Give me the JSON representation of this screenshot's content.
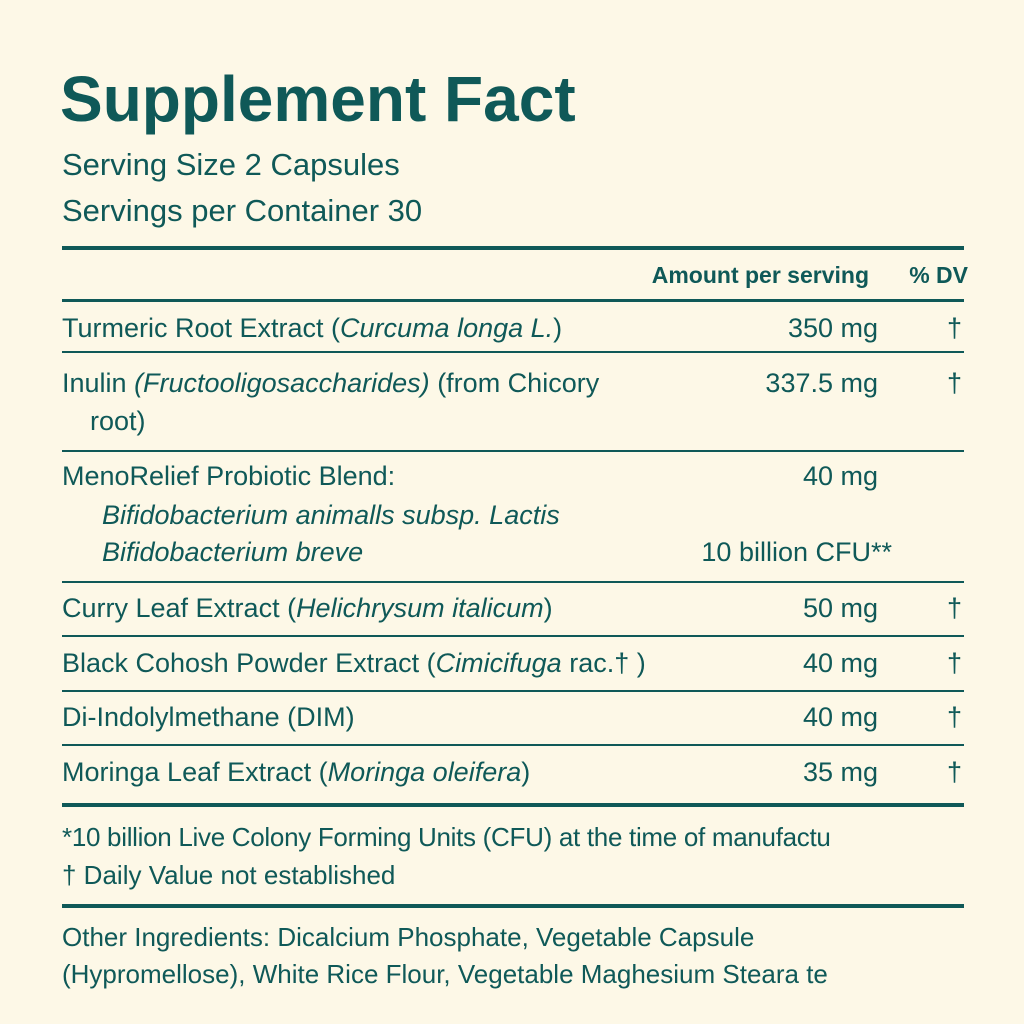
{
  "title": "Supplement Fact",
  "serving_size": "Serving Size  2 Capsules",
  "servings_per_container": "Servings per Container 30",
  "header": {
    "amount": "Amount per serving",
    "dv": "% DV"
  },
  "rows": [
    {
      "name": "Turmeric Root Extract (",
      "latin": "Curcuma longa L.",
      "tail": ")",
      "amount": "350 mg",
      "dv": "†"
    },
    {
      "name": "Inulin ",
      "latin": "(Fructooligosaccharides)",
      "tail": " (from Chicory",
      "cont": "root)",
      "amount": "337.5 mg",
      "dv": "†"
    },
    {
      "name": "MenoRelief Probiotic Blend:",
      "amount": "40 mg",
      "strains": [
        "Bifidobacterium animalls subsp. Lactis",
        "Bifidobacterium breve"
      ],
      "cfu": "10 billion CFU**"
    },
    {
      "name": "Curry Leaf Extract (",
      "latin": "Helichrysum italicum",
      "tail": ")",
      "amount": "50 mg",
      "dv": "†"
    },
    {
      "name": "Black Cohosh Powder Extract (",
      "latin": "Cimicifuga",
      "tail": " rac.† )",
      "amount": "40 mg",
      "dv": "†"
    },
    {
      "name": "Di-Indolylmethane (DIM)",
      "amount": "40 mg",
      "dv": "†"
    },
    {
      "name": "Moringa Leaf Extract (",
      "latin": "Moringa oleifera",
      "tail": ")",
      "amount": "35 mg",
      "dv": "†"
    }
  ],
  "footnotes": [
    "*10 billion Live Colony Forming Units (CFU) at the time of manufactu",
    "† Daily Value not established"
  ],
  "other_ingredients": [
    "Other Ingredients: Dicalcium Phosphate, Vegetable Capsule",
    "(Hypromellose), White Rice Flour, Vegetable Maghesium Steara te"
  ],
  "colors": {
    "background": "#fdf8e7",
    "text": "#0f5958"
  }
}
